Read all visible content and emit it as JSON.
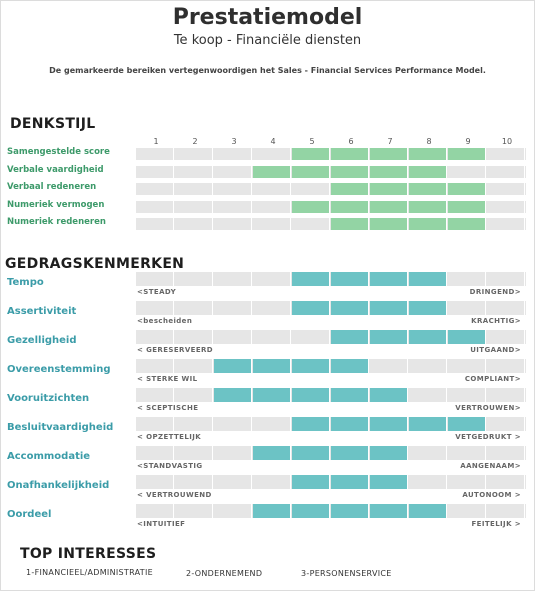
{
  "header": {
    "title": "Prestatiemodel",
    "subtitle": "Te koop - Financiële diensten",
    "description": "De gemarkeerde bereiken vertegenwoordigen het Sales - Financial Services Performance Model."
  },
  "scale": [
    "1",
    "2",
    "3",
    "4",
    "5",
    "6",
    "7",
    "8",
    "9",
    "10"
  ],
  "thinking": {
    "title": "DENKSTIJL",
    "rows": [
      {
        "label": "Samengestelde score",
        "from": 5,
        "to": 9
      },
      {
        "label": "Verbale vaardigheid",
        "from": 4,
        "to": 8
      },
      {
        "label": "Verbaal redeneren",
        "from": 6,
        "to": 9
      },
      {
        "label": "Numeriek vermogen",
        "from": 5,
        "to": 9
      },
      {
        "label": "Numeriek redeneren",
        "from": 6,
        "to": 9
      }
    ]
  },
  "behavior": {
    "title": "GEDRAGSKENMERKEN",
    "rows": [
      {
        "label": "Tempo",
        "from": 5,
        "to": 8,
        "left": "<STEADY",
        "right": "DRINGEND>"
      },
      {
        "label": "Assertiviteit",
        "from": 5,
        "to": 8,
        "left": "<bescheiden",
        "right": "KRACHTIG>"
      },
      {
        "label": "Gezelligheid",
        "from": 6,
        "to": 9,
        "left": "< GERESERVEERD",
        "right": "UITGAAND>"
      },
      {
        "label": "Overeenstemming",
        "from": 3,
        "to": 6,
        "left": "< STERKE WIL",
        "right": "COMPLIANT>"
      },
      {
        "label": "Vooruitzichten",
        "from": 3,
        "to": 7,
        "left": "< SCEPTISCHE",
        "right": "VERTROUWEN>"
      },
      {
        "label": "Besluitvaardigheid",
        "from": 5,
        "to": 9,
        "left": "< OPZETTELIJK",
        "right": "VETGEDRUKT >"
      },
      {
        "label": "Accommodatie",
        "from": 4,
        "to": 7,
        "left": "<STANDVASTIG",
        "right": "AANGENAAM>"
      },
      {
        "label": "Onafhankelijkheid",
        "from": 5,
        "to": 7,
        "left": "< VERTROUWEND",
        "right": "AUTONOOM >"
      },
      {
        "label": "Oordeel",
        "from": 4,
        "to": 8,
        "left": "<INTUITIEF",
        "right": "FEITELIJK >"
      }
    ]
  },
  "interests": {
    "title": "TOP INTERESSES",
    "items": [
      "1-FINANCIEEL/ADMINISTRATIE",
      "2-ONDERNEMEND",
      "3-PERSONENSERVICE"
    ]
  },
  "colors": {
    "thinking_fill": "#93d4a4",
    "behavior_fill": "#6cc3c5",
    "bar_background": "#e6e6e6",
    "thinking_label": "#3d9a6a",
    "behavior_label": "#3b9ca8"
  }
}
